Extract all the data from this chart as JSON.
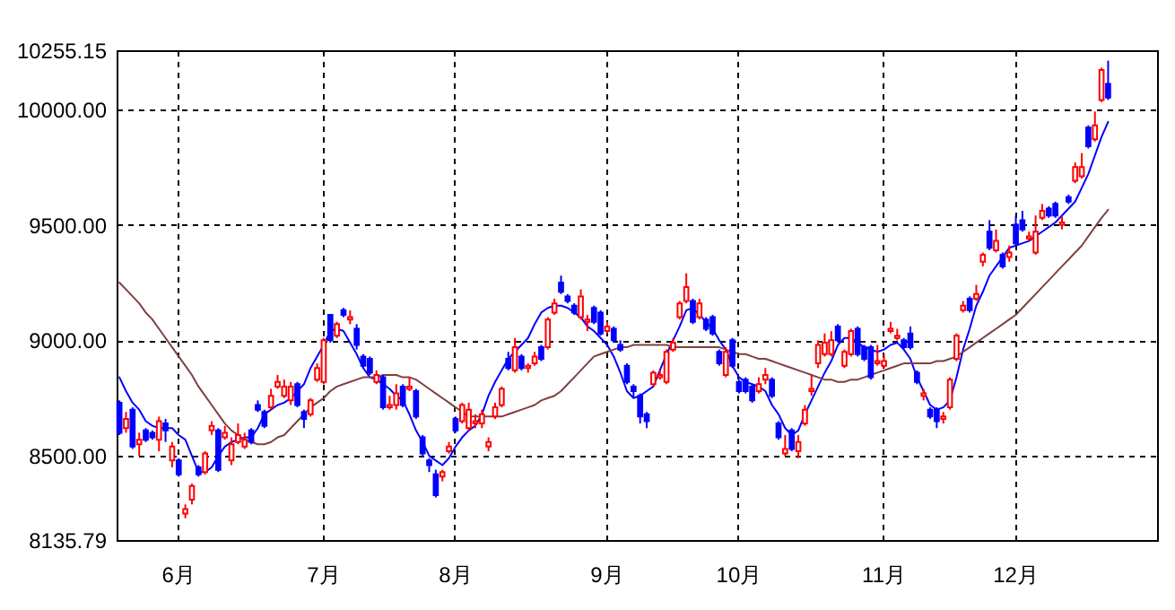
{
  "chart_data": {
    "type": "candlestick",
    "categories": [
      null,
      null,
      null,
      null,
      null,
      null,
      null,
      null,
      null,
      "6月",
      null,
      null,
      null,
      null,
      null,
      null,
      null,
      null,
      null,
      null,
      null,
      null,
      null,
      null,
      null,
      null,
      null,
      null,
      null,
      null,
      null,
      "7月",
      null,
      null,
      null,
      null,
      null,
      null,
      null,
      null,
      null,
      null,
      null,
      null,
      null,
      null,
      null,
      null,
      null,
      null,
      null,
      "8月",
      null,
      null,
      null,
      null,
      null,
      null,
      null,
      null,
      null,
      null,
      null,
      null,
      null,
      null,
      null,
      null,
      null,
      null,
      null,
      null,
      null,
      null,
      "9月",
      null,
      null,
      null,
      null,
      null,
      null,
      null,
      null,
      null,
      null,
      null,
      null,
      null,
      null,
      null,
      null,
      null,
      null,
      null,
      "10月",
      null,
      null,
      null,
      null,
      null,
      null,
      null,
      null,
      null,
      null,
      null,
      null,
      null,
      null,
      null,
      null,
      null,
      null,
      null,
      null,
      null,
      "11月",
      null,
      null,
      null,
      null,
      null,
      null,
      null,
      null,
      null,
      null,
      null,
      null,
      null,
      null,
      null,
      null,
      null,
      null,
      null,
      "12月",
      null,
      null,
      null,
      null,
      null,
      null,
      null,
      null,
      null,
      null,
      null,
      null,
      null,
      null,
      null,
      null,
      null,
      null,
      null,
      null,
      null
    ],
    "ohlc": [
      [
        8730,
        8740,
        8590,
        8600
      ],
      [
        8620,
        8690,
        8600,
        8660
      ],
      [
        8700,
        8710,
        8530,
        8540
      ],
      [
        8550,
        8600,
        8500,
        8570
      ],
      [
        8610,
        8620,
        8560,
        8570
      ],
      [
        8600,
        8610,
        8570,
        8580
      ],
      [
        8570,
        8670,
        8520,
        8650
      ],
      [
        8640,
        8660,
        8560,
        8610
      ],
      [
        8480,
        8560,
        8450,
        8540
      ],
      [
        8480,
        8490,
        8410,
        8420
      ],
      [
        8250,
        8290,
        8230,
        8270
      ],
      [
        8310,
        8380,
        8290,
        8370
      ],
      [
        8450,
        8460,
        8410,
        8420
      ],
      [
        8430,
        8520,
        8420,
        8510
      ],
      [
        8610,
        8650,
        8590,
        8630
      ],
      [
        8610,
        8620,
        8430,
        8440
      ],
      [
        8580,
        8630,
        8570,
        8600
      ],
      [
        8480,
        8580,
        8460,
        8550
      ],
      [
        8560,
        8640,
        8550,
        8590
      ],
      [
        8540,
        8600,
        8530,
        8570
      ],
      [
        8610,
        8620,
        8550,
        8560
      ],
      [
        8720,
        8740,
        8690,
        8700
      ],
      [
        8690,
        8700,
        8620,
        8630
      ],
      [
        8710,
        8790,
        8700,
        8760
      ],
      [
        8800,
        8850,
        8790,
        8820
      ],
      [
        8760,
        8830,
        8750,
        8800
      ],
      [
        8740,
        8820,
        8720,
        8800
      ],
      [
        8810,
        8820,
        8710,
        8720
      ],
      [
        8690,
        8700,
        8620,
        8660
      ],
      [
        8680,
        8750,
        8670,
        8740
      ],
      [
        8830,
        8900,
        8820,
        8880
      ],
      [
        8820,
        9010,
        8810,
        9000
      ],
      [
        9110,
        9110,
        8990,
        9000
      ],
      [
        9020,
        9080,
        9010,
        9070
      ],
      [
        9130,
        9140,
        9100,
        9110
      ],
      [
        9090,
        9130,
        9070,
        9100
      ],
      [
        9050,
        9070,
        8960,
        8980
      ],
      [
        8930,
        8940,
        8880,
        8890
      ],
      [
        8920,
        8930,
        8850,
        8860
      ],
      [
        8820,
        8870,
        8810,
        8850
      ],
      [
        8840,
        8850,
        8700,
        8710
      ],
      [
        8710,
        8760,
        8700,
        8720
      ],
      [
        8720,
        8810,
        8700,
        8770
      ],
      [
        8800,
        8810,
        8710,
        8720
      ],
      [
        8790,
        8840,
        8780,
        8800
      ],
      [
        8780,
        8790,
        8660,
        8670
      ],
      [
        8580,
        8590,
        8500,
        8510
      ],
      [
        8480,
        8490,
        8430,
        8460
      ],
      [
        8420,
        8440,
        8320,
        8330
      ],
      [
        8410,
        8440,
        8390,
        8430
      ],
      [
        8520,
        8560,
        8510,
        8540
      ],
      [
        8660,
        8670,
        8600,
        8610
      ],
      [
        8650,
        8730,
        8640,
        8720
      ],
      [
        8620,
        8730,
        8610,
        8700
      ],
      [
        8640,
        8680,
        8620,
        8650
      ],
      [
        8640,
        8700,
        8620,
        8680
      ],
      [
        8540,
        8580,
        8520,
        8560
      ],
      [
        8670,
        8730,
        8660,
        8710
      ],
      [
        8720,
        8800,
        8710,
        8790
      ],
      [
        8920,
        8950,
        8870,
        8880
      ],
      [
        8870,
        9010,
        8860,
        8970
      ],
      [
        8930,
        8940,
        8870,
        8880
      ],
      [
        8880,
        8900,
        8860,
        8890
      ],
      [
        8900,
        8950,
        8890,
        8930
      ],
      [
        8970,
        8980,
        8910,
        8920
      ],
      [
        8970,
        9100,
        8960,
        9090
      ],
      [
        9120,
        9180,
        9110,
        9160
      ],
      [
        9250,
        9280,
        9200,
        9210
      ],
      [
        9190,
        9200,
        9160,
        9170
      ],
      [
        9150,
        9160,
        9110,
        9120
      ],
      [
        9100,
        9220,
        9090,
        9190
      ],
      [
        9080,
        9110,
        9040,
        9090
      ],
      [
        9140,
        9150,
        9070,
        9080
      ],
      [
        9120,
        9130,
        9020,
        9030
      ],
      [
        9040,
        9080,
        9030,
        9060
      ],
      [
        9050,
        9060,
        8990,
        9000
      ],
      [
        8980,
        9000,
        8950,
        8960
      ],
      [
        8890,
        8900,
        8810,
        8820
      ],
      [
        8800,
        8810,
        8750,
        8780
      ],
      [
        8760,
        8770,
        8640,
        8670
      ],
      [
        8680,
        8690,
        8620,
        8650
      ],
      [
        8810,
        8870,
        8800,
        8860
      ],
      [
        8840,
        8870,
        8830,
        8850
      ],
      [
        8820,
        8960,
        8810,
        8950
      ],
      [
        8960,
        9010,
        8950,
        8990
      ],
      [
        9100,
        9170,
        9090,
        9160
      ],
      [
        9170,
        9290,
        9160,
        9230
      ],
      [
        9170,
        9180,
        9070,
        9080
      ],
      [
        9100,
        9180,
        9090,
        9160
      ],
      [
        9090,
        9100,
        9040,
        9050
      ],
      [
        9100,
        9110,
        9020,
        9030
      ],
      [
        8950,
        8960,
        8890,
        8900
      ],
      [
        8850,
        8970,
        8840,
        8950
      ],
      [
        9000,
        9010,
        8880,
        8890
      ],
      [
        8820,
        8830,
        8770,
        8780
      ],
      [
        8830,
        8840,
        8770,
        8780
      ],
      [
        8800,
        8810,
        8730,
        8740
      ],
      [
        8780,
        8840,
        8770,
        8810
      ],
      [
        8830,
        8880,
        8810,
        8850
      ],
      [
        8830,
        8840,
        8750,
        8760
      ],
      [
        8640,
        8650,
        8570,
        8580
      ],
      [
        8510,
        8590,
        8500,
        8530
      ],
      [
        8610,
        8620,
        8520,
        8530
      ],
      [
        8520,
        8590,
        8490,
        8560
      ],
      [
        8640,
        8720,
        8630,
        8700
      ],
      [
        8780,
        8850,
        8760,
        8790
      ],
      [
        8900,
        9000,
        8880,
        8980
      ],
      [
        8940,
        9030,
        8930,
        8990
      ],
      [
        8940,
        9040,
        8930,
        9000
      ],
      [
        9060,
        9070,
        8990,
        9000
      ],
      [
        8890,
        8960,
        8880,
        8950
      ],
      [
        8940,
        9050,
        8930,
        9040
      ],
      [
        9050,
        9060,
        8930,
        8940
      ],
      [
        8970,
        8980,
        8910,
        8920
      ],
      [
        8970,
        8980,
        8830,
        8840
      ],
      [
        8900,
        8980,
        8890,
        8910
      ],
      [
        8890,
        8940,
        8880,
        8910
      ],
      [
        9040,
        9080,
        9030,
        9050
      ],
      [
        9010,
        9050,
        9000,
        9020
      ],
      [
        9000,
        9010,
        8960,
        8970
      ],
      [
        9030,
        9060,
        8960,
        8970
      ],
      [
        8860,
        8870,
        8810,
        8820
      ],
      [
        8760,
        8790,
        8740,
        8770
      ],
      [
        8700,
        8710,
        8660,
        8670
      ],
      [
        8700,
        8710,
        8620,
        8650
      ],
      [
        8660,
        8690,
        8640,
        8670
      ],
      [
        8710,
        8840,
        8700,
        8830
      ],
      [
        8920,
        9030,
        8910,
        9020
      ],
      [
        9130,
        9170,
        9120,
        9150
      ],
      [
        9180,
        9190,
        9120,
        9130
      ],
      [
        9180,
        9240,
        9170,
        9200
      ],
      [
        9340,
        9380,
        9320,
        9370
      ],
      [
        9470,
        9520,
        9390,
        9400
      ],
      [
        9390,
        9480,
        9380,
        9430
      ],
      [
        9370,
        9380,
        9310,
        9320
      ],
      [
        9360,
        9410,
        9340,
        9380
      ],
      [
        9500,
        9540,
        9410,
        9420
      ],
      [
        9520,
        9560,
        9470,
        9480
      ],
      [
        9440,
        9470,
        9430,
        9450
      ],
      [
        9380,
        9540,
        9370,
        9470
      ],
      [
        9530,
        9590,
        9520,
        9560
      ],
      [
        9570,
        9580,
        9530,
        9540
      ],
      [
        9590,
        9600,
        9530,
        9540
      ],
      [
        9500,
        9540,
        9480,
        9510
      ],
      [
        9620,
        9630,
        9590,
        9600
      ],
      [
        9690,
        9770,
        9680,
        9750
      ],
      [
        9710,
        9810,
        9700,
        9750
      ],
      [
        9920,
        9930,
        9830,
        9840
      ],
      [
        9870,
        9990,
        9860,
        9930
      ],
      [
        10040,
        10180,
        10030,
        10170
      ],
      [
        10110,
        10210,
        10040,
        10050
      ],
      null,
      null,
      null,
      null,
      null,
      null,
      null
    ],
    "series": [
      {
        "type": "line",
        "color": "#0000ff",
        "values": [
          8840,
          8780,
          8730,
          8700,
          8650,
          8630,
          8620,
          8620,
          8620,
          8590,
          8570,
          8500,
          8430,
          8430,
          8450,
          8500,
          8540,
          8560,
          8570,
          8580,
          8580,
          8620,
          8680,
          8700,
          8720,
          8730,
          8750,
          8780,
          8810,
          8880,
          8930,
          8980,
          9040,
          9050,
          9040,
          8990,
          8940,
          8880,
          8840,
          8830,
          8810,
          8790,
          8760,
          8740,
          8680,
          8610,
          8560,
          8500,
          8480,
          8460,
          8490,
          8540,
          8580,
          8610,
          8630,
          8680,
          8760,
          8820,
          8870,
          8920,
          8950,
          8980,
          9010,
          9070,
          9120,
          9140,
          9150,
          9150,
          9140,
          9120,
          9100,
          9060,
          9040,
          9010,
          8980,
          8930,
          8860,
          8780,
          8750,
          8760,
          8780,
          8800,
          8870,
          8940,
          9000,
          9060,
          9130,
          9140,
          9110,
          9080,
          9050,
          9000,
          8960,
          8890,
          8840,
          8820,
          8810,
          8800,
          8780,
          8720,
          8680,
          8620,
          8590,
          8610,
          8680,
          8740,
          8800,
          8860,
          8910,
          8980,
          9010,
          9010,
          8990,
          8970,
          8960,
          8950,
          8960,
          8980,
          8990,
          8960,
          8920,
          8840,
          8780,
          8720,
          8700,
          8710,
          8740,
          8840,
          8960,
          9050,
          9150,
          9210,
          9280,
          9320,
          9360,
          9400,
          9410,
          9420,
          9430,
          9450,
          9470,
          9490,
          9510,
          9540,
          9570,
          9600,
          9660,
          9720,
          9800,
          9880,
          9945,
          null,
          null,
          null,
          null,
          null,
          null,
          null
        ]
      },
      {
        "type": "line",
        "color": "#804040",
        "values": [
          9250,
          9220,
          9190,
          9160,
          9120,
          9090,
          9050,
          9010,
          8970,
          8930,
          8890,
          8850,
          8800,
          8760,
          8720,
          8680,
          8640,
          8610,
          8590,
          8570,
          8560,
          8550,
          8550,
          8560,
          8580,
          8590,
          8620,
          8650,
          8680,
          8710,
          8730,
          8750,
          8780,
          8800,
          8810,
          8820,
          8830,
          8840,
          8840,
          8840,
          8850,
          8850,
          8850,
          8840,
          8840,
          8830,
          8810,
          8790,
          8770,
          8750,
          8730,
          8710,
          8690,
          8670,
          8670,
          8670,
          8670,
          8670,
          8670,
          8680,
          8690,
          8700,
          8710,
          8720,
          8740,
          8750,
          8760,
          8780,
          8810,
          8840,
          8870,
          8900,
          8930,
          8940,
          8950,
          8960,
          8970,
          8970,
          8980,
          8980,
          8980,
          8980,
          8980,
          8980,
          8970,
          8970,
          8970,
          8970,
          8970,
          8970,
          8970,
          8970,
          8960,
          8950,
          8940,
          8940,
          8930,
          8920,
          8920,
          8910,
          8900,
          8890,
          8880,
          8870,
          8860,
          8850,
          8840,
          8830,
          8830,
          8820,
          8820,
          8830,
          8830,
          8840,
          8850,
          8860,
          8870,
          8880,
          8890,
          8900,
          8900,
          8900,
          8900,
          8900,
          8910,
          8910,
          8920,
          8930,
          8950,
          8970,
          8990,
          9010,
          9030,
          9050,
          9070,
          9090,
          9110,
          9140,
          9170,
          9200,
          9230,
          9260,
          9290,
          9320,
          9350,
          9380,
          9410,
          9450,
          9490,
          9530,
          9565,
          null,
          null,
          null,
          null,
          null,
          null,
          null
        ]
      }
    ],
    "ylim": [
      8135.79,
      10255.15
    ],
    "yticks": [
      8135.79,
      {
        "value": 8500,
        "label": "8500.00"
      },
      {
        "value": 9000,
        "label": "9000.00"
      },
      {
        "value": 9500,
        "label": "9500.00"
      },
      {
        "value": 10000,
        "label": "10000.00"
      },
      10255.15
    ],
    "grid": true
  }
}
